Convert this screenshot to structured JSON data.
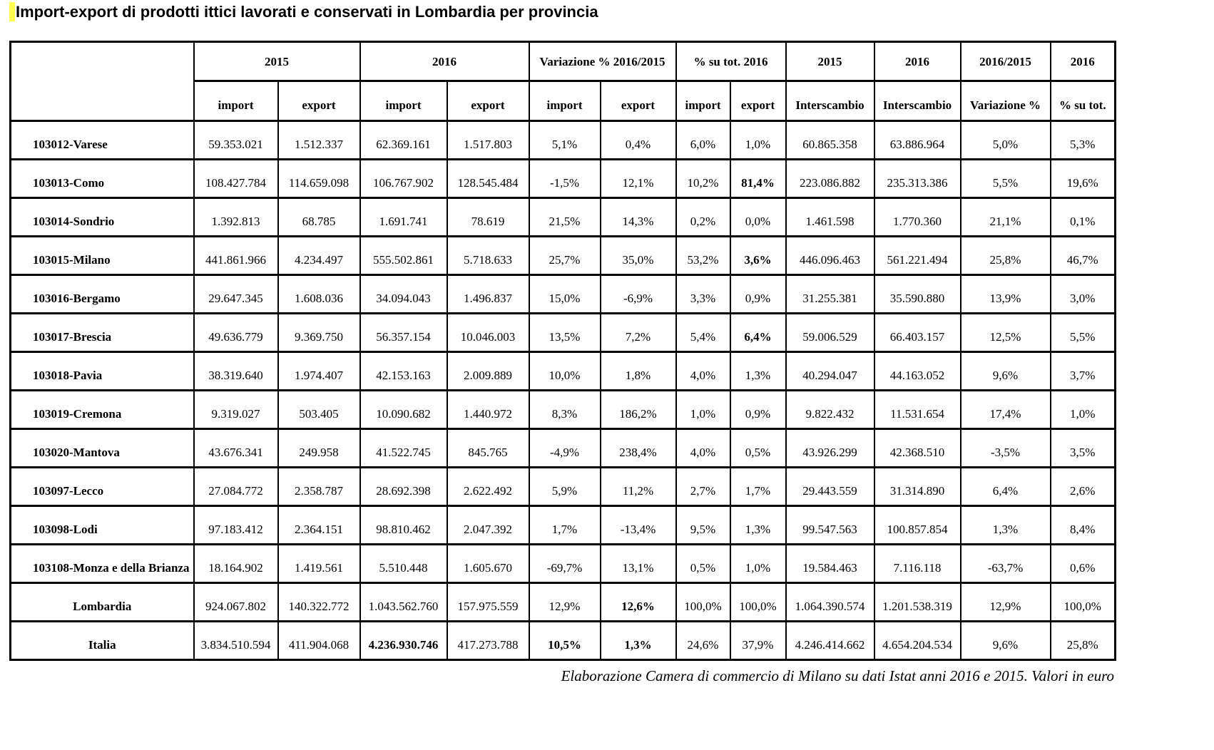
{
  "title": "Import-export di prodotti ittici lavorati e conservati in Lombardia per provincia",
  "highlight_color": "#ffff4d",
  "footer": "Elaborazione Camera di commercio di Milano su dati Istat anni 2016 e 2015. Valori in euro",
  "table": {
    "corner": "",
    "groups": [
      {
        "label": "2015",
        "cols": [
          "import",
          "export"
        ]
      },
      {
        "label": "2016",
        "cols": [
          "import",
          "export"
        ]
      },
      {
        "label": "Variazione % 2016/2015",
        "cols": [
          "import",
          "export"
        ]
      },
      {
        "label": "% su tot. 2016",
        "cols": [
          "import",
          "export"
        ]
      },
      {
        "label": "2015",
        "cols": [
          "Interscambio"
        ]
      },
      {
        "label": "2016",
        "cols": [
          "Interscambio"
        ]
      },
      {
        "label": "2016/2015",
        "cols": [
          "Variazione %"
        ]
      },
      {
        "label": "2016",
        "cols": [
          "% su tot."
        ]
      }
    ],
    "rows": [
      {
        "label": "103012-Varese",
        "align": "left",
        "cells": [
          "59.353.021",
          "1.512.337",
          "62.369.161",
          "1.517.803",
          "5,1%",
          "0,4%",
          "6,0%",
          "1,0%",
          "60.865.358",
          "63.886.964",
          "5,0%",
          "5,3%"
        ],
        "bold": []
      },
      {
        "label": "103013-Como",
        "align": "left",
        "cells": [
          "108.427.784",
          "114.659.098",
          "106.767.902",
          "128.545.484",
          "-1,5%",
          "12,1%",
          "10,2%",
          "81,4%",
          "223.086.882",
          "235.313.386",
          "5,5%",
          "19,6%"
        ],
        "bold": [
          7
        ]
      },
      {
        "label": "103014-Sondrio",
        "align": "left",
        "cells": [
          "1.392.813",
          "68.785",
          "1.691.741",
          "78.619",
          "21,5%",
          "14,3%",
          "0,2%",
          "0,0%",
          "1.461.598",
          "1.770.360",
          "21,1%",
          "0,1%"
        ],
        "bold": []
      },
      {
        "label": "103015-Milano",
        "align": "left",
        "cells": [
          "441.861.966",
          "4.234.497",
          "555.502.861",
          "5.718.633",
          "25,7%",
          "35,0%",
          "53,2%",
          "3,6%",
          "446.096.463",
          "561.221.494",
          "25,8%",
          "46,7%"
        ],
        "bold": [
          7
        ]
      },
      {
        "label": "103016-Bergamo",
        "align": "left",
        "cells": [
          "29.647.345",
          "1.608.036",
          "34.094.043",
          "1.496.837",
          "15,0%",
          "-6,9%",
          "3,3%",
          "0,9%",
          "31.255.381",
          "35.590.880",
          "13,9%",
          "3,0%"
        ],
        "bold": []
      },
      {
        "label": "103017-Brescia",
        "align": "left",
        "cells": [
          "49.636.779",
          "9.369.750",
          "56.357.154",
          "10.046.003",
          "13,5%",
          "7,2%",
          "5,4%",
          "6,4%",
          "59.006.529",
          "66.403.157",
          "12,5%",
          "5,5%"
        ],
        "bold": [
          7
        ]
      },
      {
        "label": "103018-Pavia",
        "align": "left",
        "cells": [
          "38.319.640",
          "1.974.407",
          "42.153.163",
          "2.009.889",
          "10,0%",
          "1,8%",
          "4,0%",
          "1,3%",
          "40.294.047",
          "44.163.052",
          "9,6%",
          "3,7%"
        ],
        "bold": []
      },
      {
        "label": "103019-Cremona",
        "align": "left",
        "cells": [
          "9.319.027",
          "503.405",
          "10.090.682",
          "1.440.972",
          "8,3%",
          "186,2%",
          "1,0%",
          "0,9%",
          "9.822.432",
          "11.531.654",
          "17,4%",
          "1,0%"
        ],
        "bold": []
      },
      {
        "label": "103020-Mantova",
        "align": "left",
        "cells": [
          "43.676.341",
          "249.958",
          "41.522.745",
          "845.765",
          "-4,9%",
          "238,4%",
          "4,0%",
          "0,5%",
          "43.926.299",
          "42.368.510",
          "-3,5%",
          "3,5%"
        ],
        "bold": []
      },
      {
        "label": "103097-Lecco",
        "align": "left",
        "cells": [
          "27.084.772",
          "2.358.787",
          "28.692.398",
          "2.622.492",
          "5,9%",
          "11,2%",
          "2,7%",
          "1,7%",
          "29.443.559",
          "31.314.890",
          "6,4%",
          "2,6%"
        ],
        "bold": []
      },
      {
        "label": "103098-Lodi",
        "align": "left",
        "cells": [
          "97.183.412",
          "2.364.151",
          "98.810.462",
          "2.047.392",
          "1,7%",
          "-13,4%",
          "9,5%",
          "1,3%",
          "99.547.563",
          "100.857.854",
          "1,3%",
          "8,4%"
        ],
        "bold": []
      },
      {
        "label": "103108-Monza e della Brianza",
        "align": "left",
        "cells": [
          "18.164.902",
          "1.419.561",
          "5.510.448",
          "1.605.670",
          "-69,7%",
          "13,1%",
          "0,5%",
          "1,0%",
          "19.584.463",
          "7.116.118",
          "-63,7%",
          "0,6%"
        ],
        "bold": []
      },
      {
        "label": "Lombardia",
        "align": "center",
        "cells": [
          "924.067.802",
          "140.322.772",
          "1.043.562.760",
          "157.975.559",
          "12,9%",
          "12,6%",
          "100,0%",
          "100,0%",
          "1.064.390.574",
          "1.201.538.319",
          "12,9%",
          "100,0%"
        ],
        "bold": [
          5
        ]
      },
      {
        "label": "Italia",
        "align": "center",
        "cells": [
          "3.834.510.594",
          "411.904.068",
          "4.236.930.746",
          "417.273.788",
          "10,5%",
          "1,3%",
          "24,6%",
          "37,9%",
          "4.246.414.662",
          "4.654.204.534",
          "9,6%",
          "25,8%"
        ],
        "bold": [
          2,
          4,
          5
        ]
      }
    ]
  }
}
